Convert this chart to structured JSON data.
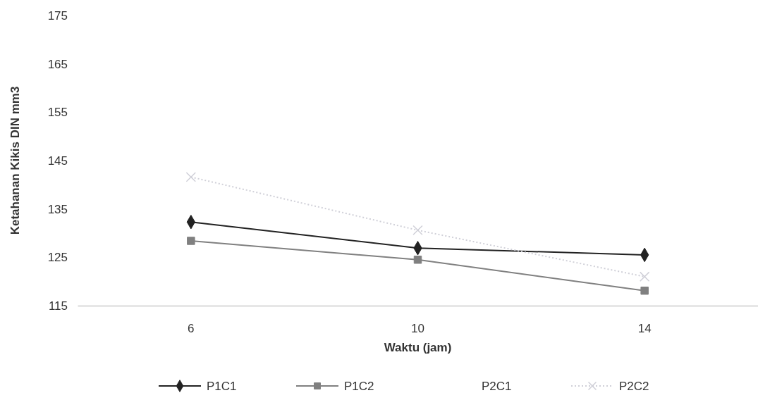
{
  "chart_data": {
    "type": "line",
    "xlabel": "Waktu (jam)",
    "ylabel": "Ketahanan Kikis DIN mm3",
    "categories": [
      "6",
      "10",
      "14"
    ],
    "series": [
      {
        "name": "P1C1",
        "color": "#222222",
        "marker": "diamond",
        "values": [
          132.3,
          126.9,
          125.5
        ]
      },
      {
        "name": "P1C2",
        "color": "#808080",
        "marker": "square",
        "values": [
          128.4,
          124.5,
          118.1
        ]
      },
      {
        "name": "P2C1",
        "marker": "none",
        "values": [
          null,
          null,
          null
        ]
      },
      {
        "name": "P2C2",
        "color": "#d0d0d8",
        "marker": "cross",
        "line_style": "dotted",
        "values": [
          141.6,
          130.6,
          121.0
        ]
      }
    ],
    "ylim": [
      115,
      175
    ],
    "yticks": [
      115,
      125,
      135,
      145,
      155,
      165,
      175
    ],
    "grid": false,
    "legend": "bottom"
  }
}
